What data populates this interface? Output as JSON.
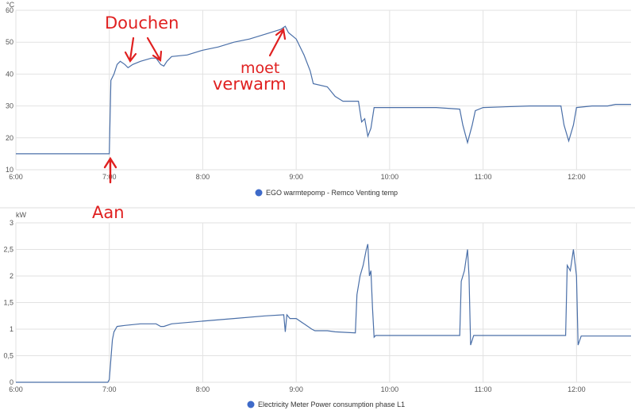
{
  "chart_data": [
    {
      "type": "line",
      "unit": "°C",
      "ylim": [
        10,
        60
      ],
      "yticks": [
        10,
        20,
        30,
        40,
        50,
        60
      ],
      "xlim": [
        "6:00",
        "12:35"
      ],
      "xticks": [
        "6:00",
        "7:00",
        "8:00",
        "9:00",
        "10:00",
        "11:00",
        "12:00"
      ],
      "grid": true,
      "legend_position": "bottom-center",
      "series": [
        {
          "name": "EGO warmtepomp - Remco Venting temp",
          "color": "#4a6fa8",
          "points": [
            [
              "6:00",
              15
            ],
            [
              "6:30",
              15
            ],
            [
              "7:00",
              15
            ],
            [
              "7:01",
              38
            ],
            [
              "7:03",
              40
            ],
            [
              "7:05",
              43
            ],
            [
              "7:07",
              44
            ],
            [
              "7:10",
              43
            ],
            [
              "7:12",
              42
            ],
            [
              "7:15",
              43
            ],
            [
              "7:20",
              44
            ],
            [
              "7:27",
              45
            ],
            [
              "7:30",
              45
            ],
            [
              "7:33",
              43
            ],
            [
              "7:35",
              42.5
            ],
            [
              "7:37",
              44
            ],
            [
              "7:40",
              45.5
            ],
            [
              "7:50",
              46
            ],
            [
              "8:00",
              47.5
            ],
            [
              "8:10",
              48.5
            ],
            [
              "8:20",
              50
            ],
            [
              "8:30",
              51
            ],
            [
              "8:40",
              52.5
            ],
            [
              "8:50",
              54
            ],
            [
              "8:53",
              55
            ],
            [
              "8:55",
              53
            ],
            [
              "9:00",
              51
            ],
            [
              "9:05",
              46
            ],
            [
              "9:09",
              41
            ],
            [
              "9:11",
              37
            ],
            [
              "9:20",
              36
            ],
            [
              "9:25",
              33
            ],
            [
              "9:30",
              31.5
            ],
            [
              "9:40",
              31.5
            ],
            [
              "9:42",
              25
            ],
            [
              "9:44",
              26
            ],
            [
              "9:46",
              20.5
            ],
            [
              "9:48",
              23
            ],
            [
              "9:50",
              29.5
            ],
            [
              "10:00",
              29.5
            ],
            [
              "10:30",
              29.5
            ],
            [
              "10:45",
              29
            ],
            [
              "10:47",
              24
            ],
            [
              "10:50",
              18.5
            ],
            [
              "10:53",
              24
            ],
            [
              "10:55",
              28.5
            ],
            [
              "11:00",
              29.5
            ],
            [
              "11:30",
              30
            ],
            [
              "11:50",
              30
            ],
            [
              "11:52",
              24
            ],
            [
              "11:55",
              19
            ],
            [
              "11:58",
              24
            ],
            [
              "12:00",
              29.5
            ],
            [
              "12:10",
              30
            ],
            [
              "12:20",
              30
            ],
            [
              "12:25",
              30.5
            ],
            [
              "12:35",
              30.5
            ]
          ]
        }
      ]
    },
    {
      "type": "line",
      "unit": "kW",
      "ylim": [
        0,
        3
      ],
      "yticks": [
        "0",
        "0,5",
        "1",
        "1,5",
        "2",
        "2,5",
        "3"
      ],
      "xlim": [
        "6:00",
        "12:35"
      ],
      "xticks": [
        "6:00",
        "7:00",
        "8:00",
        "9:00",
        "10:00",
        "11:00",
        "12:00"
      ],
      "grid": true,
      "legend_position": "bottom-center",
      "series": [
        {
          "name": "Electricity Meter Power consumption phase L1",
          "color": "#4a6fa8",
          "points": [
            [
              "6:00",
              0
            ],
            [
              "6:59",
              0
            ],
            [
              "7:00",
              0.05
            ],
            [
              "7:02",
              0.8
            ],
            [
              "7:03",
              0.95
            ],
            [
              "7:05",
              1.05
            ],
            [
              "7:10",
              1.07
            ],
            [
              "7:20",
              1.1
            ],
            [
              "7:30",
              1.1
            ],
            [
              "7:33",
              1.05
            ],
            [
              "7:35",
              1.05
            ],
            [
              "7:40",
              1.1
            ],
            [
              "8:00",
              1.15
            ],
            [
              "8:20",
              1.2
            ],
            [
              "8:40",
              1.25
            ],
            [
              "8:52",
              1.27
            ],
            [
              "8:53",
              0.95
            ],
            [
              "8:54",
              1.27
            ],
            [
              "8:56",
              1.2
            ],
            [
              "9:00",
              1.2
            ],
            [
              "9:05",
              1.1
            ],
            [
              "9:10",
              1.0
            ],
            [
              "9:12",
              0.97
            ],
            [
              "9:20",
              0.97
            ],
            [
              "9:25",
              0.95
            ],
            [
              "9:38",
              0.93
            ],
            [
              "9:39",
              1.65
            ],
            [
              "9:41",
              2.0
            ],
            [
              "9:43",
              2.2
            ],
            [
              "9:45",
              2.5
            ],
            [
              "9:46",
              2.6
            ],
            [
              "9:47",
              2.0
            ],
            [
              "9:48",
              2.1
            ],
            [
              "9:49",
              1.4
            ],
            [
              "9:50",
              0.85
            ],
            [
              "9:51",
              0.88
            ],
            [
              "10:00",
              0.88
            ],
            [
              "10:30",
              0.88
            ],
            [
              "10:45",
              0.88
            ],
            [
              "10:46",
              1.9
            ],
            [
              "10:48",
              2.1
            ],
            [
              "10:50",
              2.5
            ],
            [
              "10:51",
              2.0
            ],
            [
              "10:52",
              0.7
            ],
            [
              "10:54",
              0.88
            ],
            [
              "11:00",
              0.88
            ],
            [
              "11:30",
              0.88
            ],
            [
              "11:53",
              0.88
            ],
            [
              "11:54",
              2.2
            ],
            [
              "11:56",
              2.1
            ],
            [
              "11:58",
              2.5
            ],
            [
              "12:00",
              2.0
            ],
            [
              "12:01",
              0.7
            ],
            [
              "12:03",
              0.87
            ],
            [
              "12:35",
              0.87
            ]
          ]
        }
      ]
    }
  ],
  "annotations": {
    "douchen": "Douchen",
    "moet_verwarm_1": "moet",
    "moet_verwarm_2": "verwarm",
    "aan": "Aan"
  }
}
